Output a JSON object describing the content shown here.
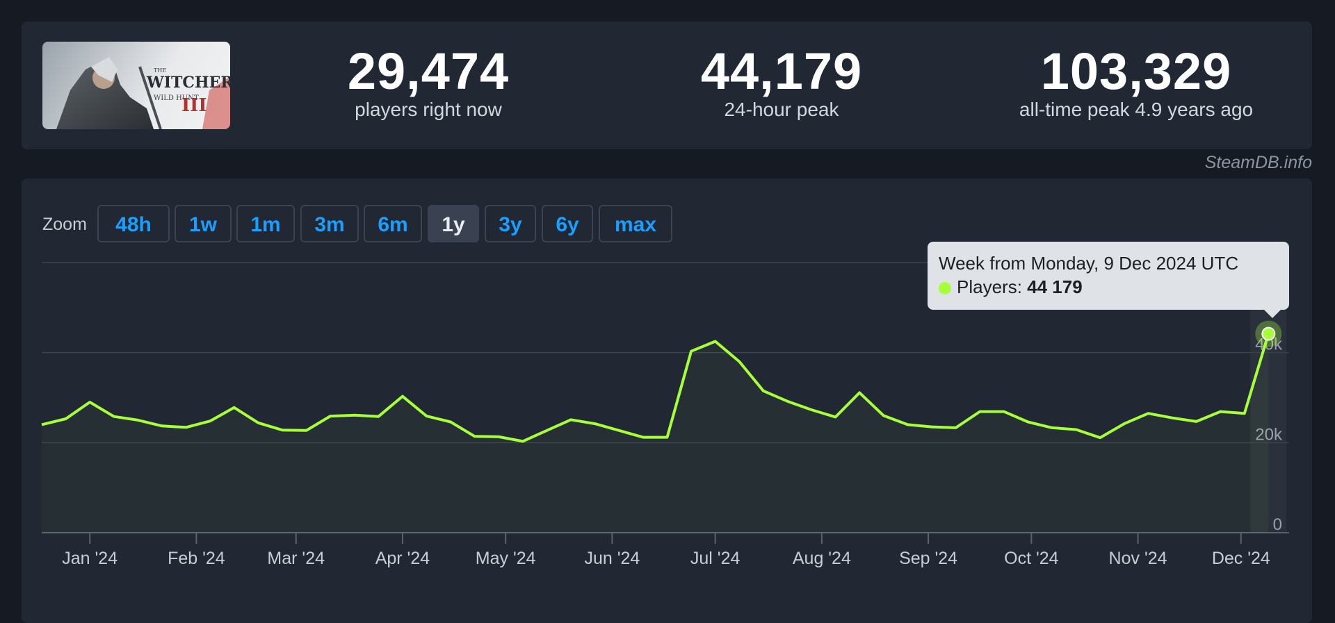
{
  "header": {
    "game_logo_text": "THE WITCHER WILD HUNT",
    "stats": [
      {
        "value": "29,474",
        "label": "players right now"
      },
      {
        "value": "44,179",
        "label": "24-hour peak"
      },
      {
        "value": "103,329",
        "label": "all-time peak 4.9 years ago"
      }
    ],
    "credit": "SteamDB.info"
  },
  "zoom": {
    "label": "Zoom",
    "buttons": [
      {
        "label": "48h",
        "active": false
      },
      {
        "label": "1w",
        "active": false
      },
      {
        "label": "1m",
        "active": false
      },
      {
        "label": "3m",
        "active": false
      },
      {
        "label": "6m",
        "active": false
      },
      {
        "label": "1y",
        "active": true
      },
      {
        "label": "3y",
        "active": false
      },
      {
        "label": "6y",
        "active": false
      },
      {
        "label": "max",
        "active": false
      }
    ]
  },
  "tooltip": {
    "title": "Week from Monday, 9 Dec 2024 UTC",
    "series_label": "Players:",
    "value": "44 179"
  },
  "colors": {
    "line": "#a6ff3a",
    "background": "#212733",
    "grid": "#3a4150"
  },
  "chart_data": {
    "type": "line",
    "title": "",
    "xlabel": "",
    "ylabel": "",
    "ylim": [
      0,
      60000
    ],
    "xlim": [
      "2023-12-18",
      "2024-12-15"
    ],
    "y_ticks": [
      {
        "value": 0,
        "label": "0"
      },
      {
        "value": 20000,
        "label": "20k"
      },
      {
        "value": 40000,
        "label": "40k"
      }
    ],
    "x_ticks": [
      {
        "date": "2024-01-01",
        "label": "Jan '24"
      },
      {
        "date": "2024-02-01",
        "label": "Feb '24"
      },
      {
        "date": "2024-03-01",
        "label": "Mar '24"
      },
      {
        "date": "2024-04-01",
        "label": "Apr '24"
      },
      {
        "date": "2024-05-01",
        "label": "May '24"
      },
      {
        "date": "2024-06-01",
        "label": "Jun '24"
      },
      {
        "date": "2024-07-01",
        "label": "Jul '24"
      },
      {
        "date": "2024-08-01",
        "label": "Aug '24"
      },
      {
        "date": "2024-09-01",
        "label": "Sep '24"
      },
      {
        "date": "2024-10-01",
        "label": "Oct '24"
      },
      {
        "date": "2024-11-01",
        "label": "Nov '24"
      },
      {
        "date": "2024-12-01",
        "label": "Dec '24"
      }
    ],
    "grid": true,
    "legend": "none",
    "highlight_index": 51,
    "series": [
      {
        "name": "Players",
        "x": [
          "2023-12-18",
          "2023-12-25",
          "2024-01-01",
          "2024-01-08",
          "2024-01-15",
          "2024-01-22",
          "2024-01-29",
          "2024-02-05",
          "2024-02-12",
          "2024-02-19",
          "2024-02-26",
          "2024-03-04",
          "2024-03-11",
          "2024-03-18",
          "2024-03-25",
          "2024-04-01",
          "2024-04-08",
          "2024-04-15",
          "2024-04-22",
          "2024-04-29",
          "2024-05-06",
          "2024-05-13",
          "2024-05-20",
          "2024-05-27",
          "2024-06-03",
          "2024-06-10",
          "2024-06-17",
          "2024-06-24",
          "2024-07-01",
          "2024-07-08",
          "2024-07-15",
          "2024-07-22",
          "2024-07-29",
          "2024-08-05",
          "2024-08-12",
          "2024-08-19",
          "2024-08-26",
          "2024-09-02",
          "2024-09-09",
          "2024-09-16",
          "2024-09-23",
          "2024-09-30",
          "2024-10-07",
          "2024-10-14",
          "2024-10-21",
          "2024-10-28",
          "2024-11-04",
          "2024-11-11",
          "2024-11-18",
          "2024-11-25",
          "2024-12-02",
          "2024-12-09"
        ],
        "y": [
          24000,
          25300,
          29000,
          25800,
          25000,
          23700,
          23400,
          24800,
          27800,
          24400,
          22800,
          22700,
          25900,
          26100,
          25800,
          30300,
          25900,
          24600,
          21400,
          21300,
          20300,
          22700,
          25100,
          24200,
          22700,
          21200,
          21200,
          40300,
          42500,
          38000,
          31500,
          29200,
          27300,
          25700,
          31100,
          26000,
          24000,
          23500,
          23300,
          26900,
          26900,
          24600,
          23300,
          22900,
          21100,
          24200,
          26500,
          25500,
          24700,
          26900,
          26500,
          44179
        ]
      }
    ]
  }
}
